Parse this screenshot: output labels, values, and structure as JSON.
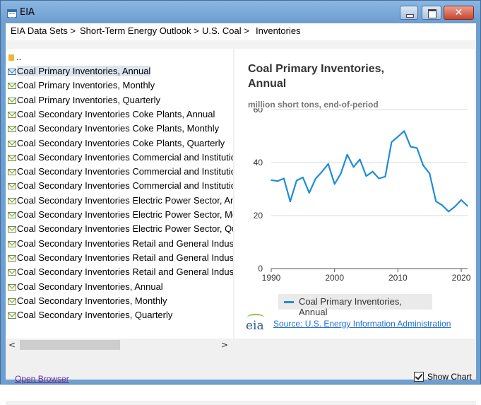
{
  "window": {
    "title": "EIA",
    "close_glyph": "✕",
    "icons": [
      "app-icon",
      "minimize-icon",
      "maximize-icon",
      "close-icon"
    ]
  },
  "breadcrumb": [
    "EIA Data Sets >",
    "Short-Term Energy Outlook >",
    "U.S. Coal >",
    "Inventories"
  ],
  "list": {
    "parent_label": "..",
    "selected_index": 0,
    "items": [
      "Coal Primary Inventories, Annual",
      "Coal Primary Inventories, Monthly",
      "Coal Primary Inventories, Quarterly",
      "Coal Secondary Inventories Coke Plants, Annual",
      "Coal Secondary Inventories Coke Plants, Monthly",
      "Coal Secondary Inventories Coke Plants, Quarterly",
      "Coal Secondary Inventories Commercial and Institution",
      "Coal Secondary Inventories Commercial and Institution",
      "Coal Secondary Inventories Commercial and Institution",
      "Coal Secondary Inventories Electric Power Sector, Annu",
      "Coal Secondary Inventories Electric Power Sector, Mont",
      "Coal Secondary Inventories Electric Power Sector, Quart",
      "Coal Secondary Inventories Retail and General Industry,",
      "Coal Secondary Inventories Retail and General Industry,",
      "Coal Secondary Inventories Retail and General Industry,",
      "Coal Secondary Inventories, Annual",
      "Coal Secondary Inventories, Monthly",
      "Coal Secondary Inventories, Quarterly"
    ],
    "scroll_left": "<",
    "scroll_right": ">"
  },
  "chart_panel": {
    "source_text": "Source: U.S. Energy Information Administration",
    "logo_text": "eia"
  },
  "footer": {
    "open_browser": "Open Browser",
    "show_chart_label": "Show Chart",
    "show_chart_checked": true
  },
  "colors": {
    "series": "#1f8dd6",
    "titlebar": "#7aa8d8",
    "link": "#1f6fd0"
  },
  "chart_data": {
    "type": "line",
    "title": "Coal Primary Inventories, Annual",
    "subtitle": "million short tons, end-of-period",
    "xlabel": "",
    "ylabel": "",
    "xlim": [
      1990,
      2021
    ],
    "ylim": [
      0,
      60
    ],
    "xticks": [
      1990,
      2000,
      2010,
      2020
    ],
    "yticks": [
      0,
      20,
      40,
      60
    ],
    "grid": "horizontal",
    "legend_position": "bottom",
    "series": [
      {
        "name": "Coal Primary Inventories, Annual",
        "x": [
          1990,
          1991,
          1992,
          1993,
          1994,
          1995,
          1996,
          1997,
          1998,
          1999,
          2000,
          2001,
          2002,
          2003,
          2004,
          2005,
          2006,
          2007,
          2008,
          2009,
          2010,
          2011,
          2012,
          2013,
          2014,
          2015,
          2016,
          2017,
          2018,
          2019,
          2020,
          2021
        ],
        "values": [
          33.4,
          33.0,
          34.0,
          25.3,
          33.2,
          34.4,
          28.6,
          33.9,
          36.5,
          39.5,
          31.9,
          35.9,
          43.0,
          38.3,
          41.2,
          34.9,
          36.6,
          34.0,
          34.7,
          47.7,
          49.8,
          51.9,
          46.0,
          45.5,
          38.9,
          35.9,
          25.4,
          23.9,
          21.5,
          23.4,
          25.9,
          23.6
        ]
      }
    ]
  }
}
